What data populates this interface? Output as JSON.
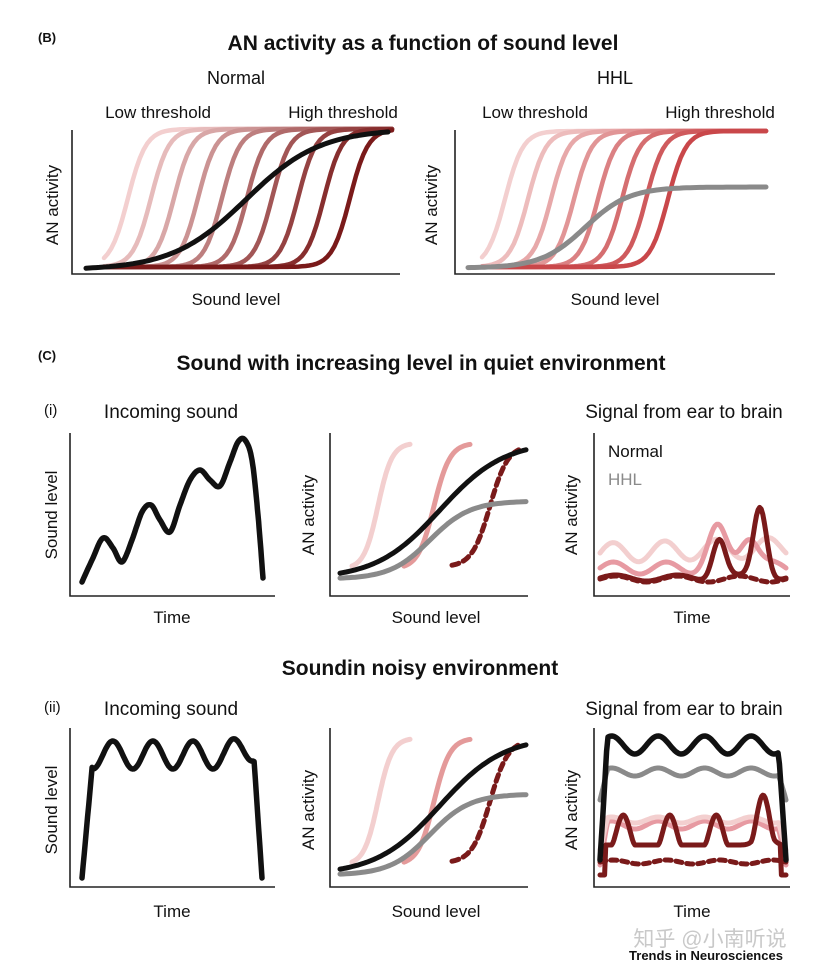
{
  "panel_b": {
    "label": "(B)",
    "title": "AN activity as a function of sound level",
    "normal": {
      "heading": "Normal",
      "low_label": "Low threshold",
      "high_label": "High threshold",
      "ylabel": "AN activity",
      "xlabel": "Sound level"
    },
    "hhl": {
      "heading": "HHL",
      "low_label": "Low threshold",
      "high_label": "High threshold",
      "ylabel": "AN activity",
      "xlabel": "Sound level"
    }
  },
  "panel_c": {
    "label": "(C)",
    "title": "Sound with increasing level in quiet environment",
    "row_i": {
      "label": "(i)",
      "incoming": {
        "title": "Incoming sound",
        "ylabel": "Sound level",
        "xlabel": "Time"
      },
      "response": {
        "ylabel": "AN activity",
        "xlabel": "Sound level"
      },
      "signal": {
        "title": "Signal from ear to brain",
        "ylabel": "AN activity",
        "xlabel": "Time",
        "legend_normal": "Normal",
        "legend_hhl": "HHL"
      }
    },
    "noisy_title": "Soundin noisy environment",
    "row_ii": {
      "label": "(ii)",
      "incoming": {
        "title": "Incoming sound",
        "ylabel": "Sound level",
        "xlabel": "Time"
      },
      "response": {
        "ylabel": "AN activity",
        "xlabel": "Sound level"
      },
      "signal": {
        "title": "Signal from ear to brain",
        "ylabel": "AN activity",
        "xlabel": "Time"
      }
    }
  },
  "watermark": "知乎 @小南听说",
  "journal": "Trends in Neurosciences",
  "colors": {
    "normal": "#111111",
    "hhl": "#8a8a8a",
    "low_threshold": "#f3cfcf",
    "mid_threshold": "#e49a9a",
    "high_threshold": "#7a1a1a"
  }
}
